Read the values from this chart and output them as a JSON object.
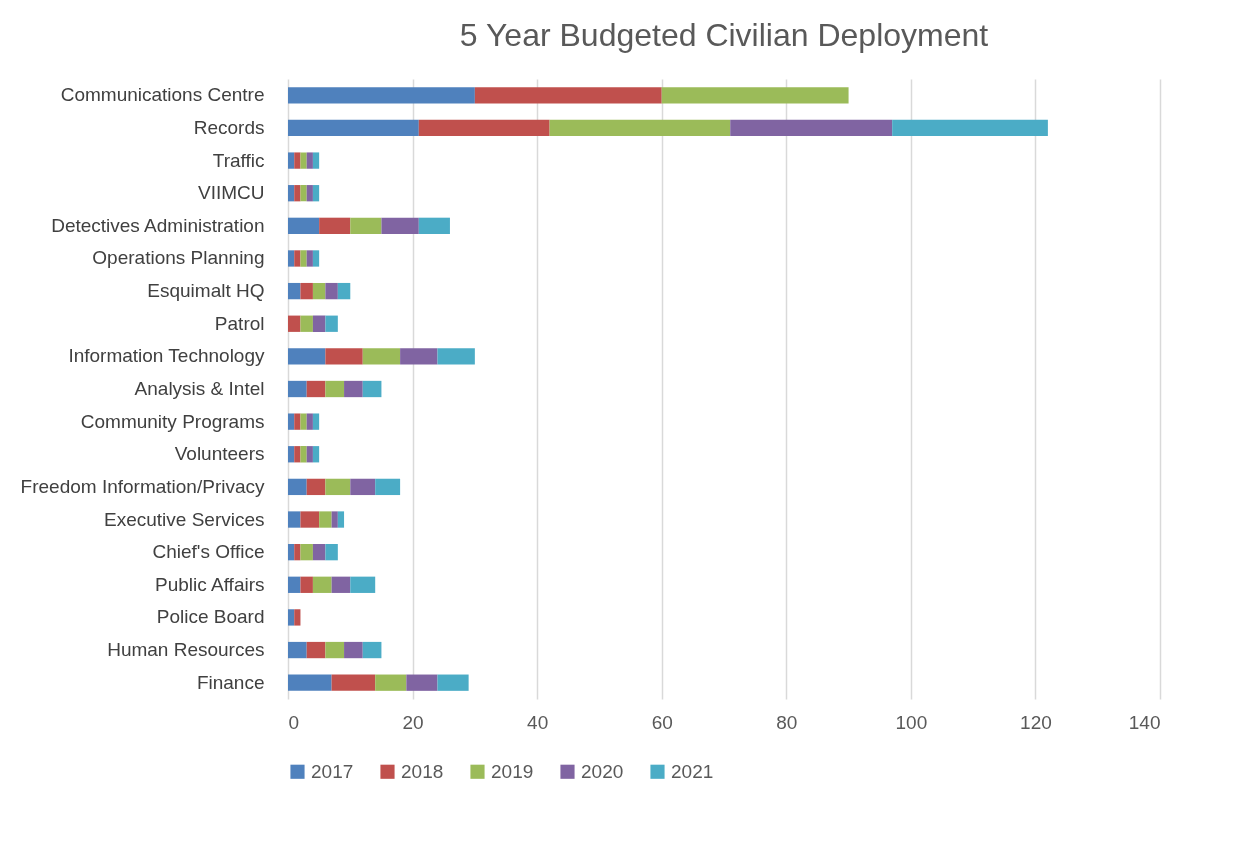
{
  "chart_data": {
    "type": "bar",
    "orientation": "horizontal",
    "stacked": true,
    "title": "5 Year Budgeted Civilian Deployment",
    "categories": [
      "Communications Centre",
      "Records",
      "Traffic",
      "VIIMCU",
      "Detectives Administration",
      "Operations Planning",
      "Esquimalt HQ",
      "Patrol",
      "Information Technology",
      "Analysis & Intel",
      "Community Programs",
      "Volunteers",
      "Freedom Information/Privacy",
      "Executive Services",
      "Chief's Office",
      "Public Affairs",
      "Police Board",
      "Human Resources",
      "Finance"
    ],
    "series": [
      {
        "name": "2017",
        "color": "#4f81bd",
        "values": [
          30,
          21,
          1,
          1,
          5,
          1,
          2,
          null,
          6,
          3,
          1,
          1,
          3,
          2,
          1,
          2,
          1,
          3,
          7
        ]
      },
      {
        "name": "2018",
        "color": "#c0504d",
        "values": [
          30,
          21,
          1,
          1,
          5,
          1,
          2,
          2,
          6,
          3,
          1,
          1,
          3,
          3,
          1,
          2,
          1,
          3,
          7
        ]
      },
      {
        "name": "2019",
        "color": "#9bbb59",
        "values": [
          30,
          29,
          1,
          1,
          5,
          1,
          2,
          2,
          6,
          3,
          1,
          1,
          4,
          2,
          2,
          3,
          null,
          3,
          5
        ]
      },
      {
        "name": "2020",
        "color": "#8064a2",
        "values": [
          null,
          26,
          1,
          1,
          6,
          1,
          2,
          2,
          6,
          3,
          1,
          1,
          4,
          1,
          2,
          3,
          null,
          3,
          5
        ]
      },
      {
        "name": "2021",
        "color": "#4bacc6",
        "values": [
          null,
          25,
          1,
          1,
          5,
          1,
          2,
          2,
          6,
          3,
          1,
          1,
          4,
          1,
          2,
          4,
          null,
          3,
          5
        ]
      }
    ],
    "xlim": [
      0,
      140
    ],
    "xticks": [
      0,
      20,
      40,
      60,
      80,
      100,
      120,
      140
    ],
    "grid": "x",
    "legend": "bottom"
  }
}
